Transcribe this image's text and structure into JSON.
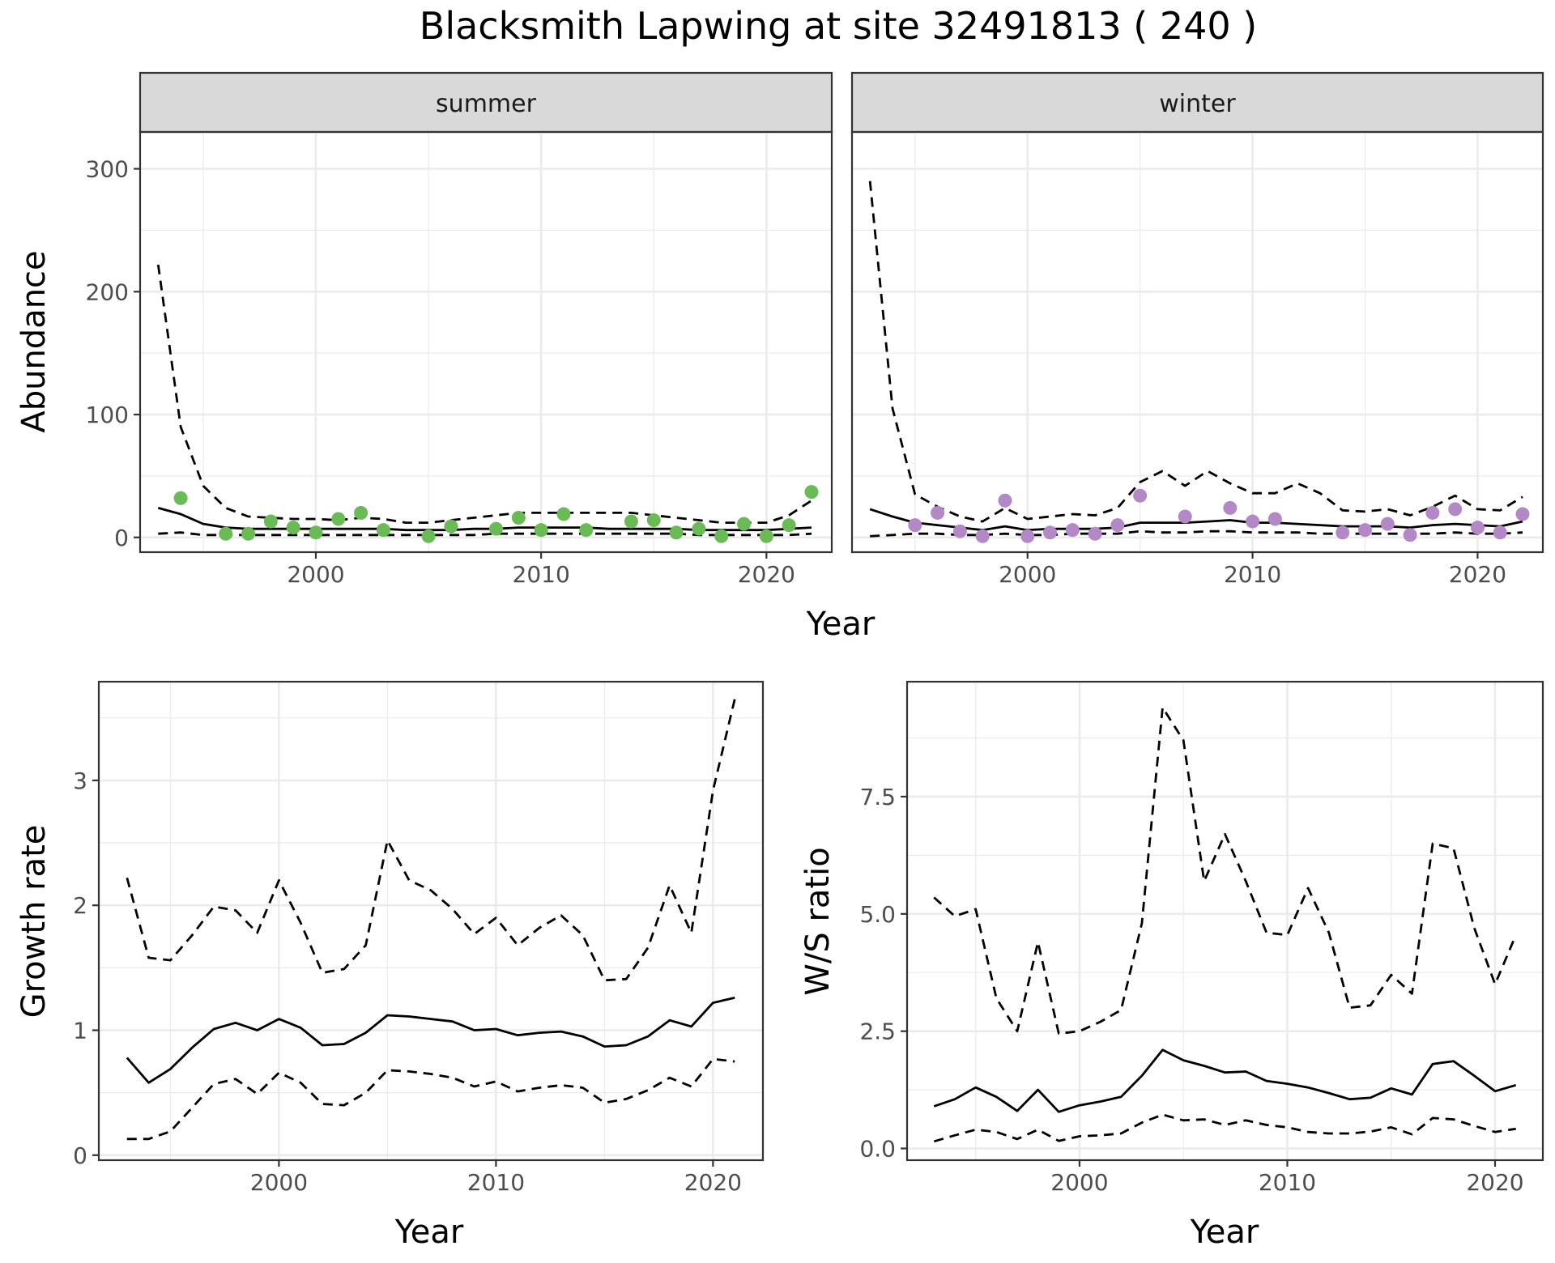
{
  "title": "Blacksmith Lapwing at site 32491813 ( 240 )",
  "colors": {
    "summer_points": "#6ABA55",
    "winter_points": "#B388C6",
    "line": "#000000",
    "strip": "#D9D9D9",
    "grid": "#EBEBEB"
  },
  "chart_data": [
    {
      "id": "abundance",
      "type": "scatter",
      "ylabel": "Abundance",
      "xlabel": "Year",
      "xlim": [
        1992.2,
        2022.9
      ],
      "ylim": [
        -12,
        330
      ],
      "xticks": [
        2000,
        2010,
        2020
      ],
      "yticks": [
        0,
        100,
        200,
        300
      ],
      "ytick_labels": [
        "0",
        "100",
        "200",
        "300"
      ],
      "facets": [
        {
          "name": "summer",
          "point_color": "#6ABA55",
          "points": {
            "x": [
              1994,
              1996,
              1997,
              1998,
              1999,
              2000,
              2001,
              2002,
              2003,
              2005,
              2006,
              2008,
              2009,
              2010,
              2011,
              2012,
              2014,
              2015,
              2016,
              2017,
              2018,
              2019,
              2020,
              2021,
              2022
            ],
            "y": [
              32,
              3,
              3,
              13,
              8,
              4,
              15,
              20,
              6,
              1,
              9,
              7,
              16,
              6,
              19,
              6,
              13,
              14,
              4,
              7,
              1,
              11,
              1,
              10,
              37
            ]
          },
          "mean": {
            "x": [
              1993,
              1994,
              1995,
              1996,
              1997,
              1998,
              1999,
              2000,
              2001,
              2002,
              2003,
              2004,
              2005,
              2006,
              2007,
              2008,
              2009,
              2010,
              2011,
              2012,
              2013,
              2014,
              2015,
              2016,
              2017,
              2018,
              2019,
              2020,
              2021,
              2022
            ],
            "y": [
              24,
              19,
              11,
              8,
              7,
              7,
              7,
              7,
              7,
              7,
              7,
              6,
              6,
              6,
              7,
              7,
              8,
              8,
              8,
              8,
              7,
              7,
              7,
              7,
              6,
              6,
              6,
              6,
              7,
              8
            ]
          },
          "upper": {
            "x": [
              1993,
              1994,
              1995,
              1996,
              1997,
              1998,
              1999,
              2000,
              2001,
              2002,
              2003,
              2004,
              2005,
              2006,
              2007,
              2008,
              2009,
              2010,
              2011,
              2012,
              2013,
              2014,
              2015,
              2016,
              2017,
              2018,
              2019,
              2020,
              2021,
              2022
            ],
            "y": [
              222,
              90,
              42,
              24,
              17,
              16,
              15,
              15,
              14,
              16,
              15,
              12,
              12,
              14,
              16,
              18,
              20,
              20,
              20,
              20,
              20,
              20,
              18,
              16,
              14,
              12,
              12,
              12,
              18,
              30
            ]
          },
          "lower": {
            "x": [
              1993,
              1994,
              1995,
              1996,
              1997,
              1998,
              1999,
              2000,
              2001,
              2002,
              2003,
              2004,
              2005,
              2006,
              2007,
              2008,
              2009,
              2010,
              2011,
              2012,
              2013,
              2014,
              2015,
              2016,
              2017,
              2018,
              2019,
              2020,
              2021,
              2022
            ],
            "y": [
              3,
              4,
              2,
              2,
              2,
              2,
              2,
              2,
              2,
              2,
              2,
              2,
              2,
              2,
              2,
              3,
              3,
              3,
              3,
              3,
              3,
              3,
              3,
              3,
              2,
              2,
              2,
              2,
              2,
              3
            ]
          }
        },
        {
          "name": "winter",
          "point_color": "#B388C6",
          "points": {
            "x": [
              1995,
              1996,
              1997,
              1998,
              1999,
              2000,
              2001,
              2002,
              2003,
              2004,
              2005,
              2007,
              2009,
              2010,
              2011,
              2014,
              2015,
              2016,
              2017,
              2018,
              2019,
              2020,
              2021,
              2022
            ],
            "y": [
              10,
              20,
              5,
              1,
              30,
              1,
              4,
              6,
              3,
              10,
              34,
              17,
              24,
              13,
              15,
              4,
              6,
              11,
              2,
              20,
              23,
              8,
              4,
              19
            ]
          },
          "mean": {
            "x": [
              1993,
              1994,
              1995,
              1996,
              1997,
              1998,
              1999,
              2000,
              2001,
              2002,
              2003,
              2004,
              2005,
              2006,
              2007,
              2008,
              2009,
              2010,
              2011,
              2012,
              2013,
              2014,
              2015,
              2016,
              2017,
              2018,
              2019,
              2020,
              2021,
              2022
            ],
            "y": [
              23,
              17,
              12,
              10,
              8,
              6,
              9,
              6,
              7,
              7,
              7,
              8,
              12,
              12,
              12,
              13,
              14,
              12,
              12,
              11,
              10,
              9,
              9,
              9,
              8,
              10,
              11,
              10,
              9,
              13
            ]
          },
          "upper": {
            "x": [
              1993,
              1994,
              1995,
              1996,
              1997,
              1998,
              1999,
              2000,
              2001,
              2002,
              2003,
              2004,
              2005,
              2006,
              2007,
              2008,
              2009,
              2010,
              2011,
              2012,
              2013,
              2014,
              2015,
              2016,
              2017,
              2018,
              2019,
              2020,
              2021,
              2022
            ],
            "y": [
              290,
              105,
              35,
              25,
              17,
              13,
              24,
              15,
              17,
              19,
              18,
              24,
              45,
              54,
              42,
              54,
              44,
              36,
              36,
              44,
              36,
              22,
              21,
              23,
              18,
              25,
              34,
              23,
              22,
              33
            ]
          },
          "lower": {
            "x": [
              1993,
              1994,
              1995,
              1996,
              1997,
              1998,
              1999,
              2000,
              2001,
              2002,
              2003,
              2004,
              2005,
              2006,
              2007,
              2008,
              2009,
              2010,
              2011,
              2012,
              2013,
              2014,
              2015,
              2016,
              2017,
              2018,
              2019,
              2020,
              2021,
              2022
            ],
            "y": [
              1,
              2,
              3,
              3,
              2,
              2,
              3,
              2,
              2,
              3,
              3,
              3,
              5,
              4,
              4,
              5,
              5,
              4,
              4,
              4,
              3,
              3,
              3,
              3,
              3,
              3,
              4,
              3,
              3,
              4
            ]
          }
        }
      ]
    },
    {
      "id": "growth",
      "type": "line",
      "ylabel": "Growth rate",
      "xlabel": "Year",
      "xlim": [
        1991.7,
        2022.3
      ],
      "ylim": [
        -0.04,
        3.79
      ],
      "xticks": [
        2000,
        2010,
        2020
      ],
      "yticks": [
        0,
        1,
        2,
        3
      ],
      "ytick_labels": [
        "0",
        "1",
        "2",
        "3"
      ],
      "mean": {
        "x": [
          1993,
          1994,
          1995,
          1996,
          1997,
          1998,
          1999,
          2000,
          2001,
          2002,
          2003,
          2004,
          2005,
          2006,
          2007,
          2008,
          2009,
          2010,
          2011,
          2012,
          2013,
          2014,
          2015,
          2016,
          2017,
          2018,
          2019,
          2020,
          2021
        ],
        "y": [
          0.78,
          0.58,
          0.69,
          0.86,
          1.01,
          1.06,
          1.0,
          1.09,
          1.02,
          0.88,
          0.89,
          0.98,
          1.12,
          1.11,
          1.09,
          1.07,
          1.0,
          1.01,
          0.96,
          0.98,
          0.99,
          0.95,
          0.87,
          0.88,
          0.95,
          1.08,
          1.03,
          1.22,
          1.26
        ]
      },
      "upper": {
        "x": [
          1993,
          1994,
          1995,
          1996,
          1997,
          1998,
          1999,
          2000,
          2001,
          2002,
          2003,
          2004,
          2005,
          2006,
          2007,
          2008,
          2009,
          2010,
          2011,
          2012,
          2013,
          2014,
          2015,
          2016,
          2017,
          2018,
          2019,
          2020,
          2021
        ],
        "y": [
          2.22,
          1.58,
          1.56,
          1.76,
          1.99,
          1.96,
          1.78,
          2.2,
          1.86,
          1.46,
          1.49,
          1.68,
          2.52,
          2.2,
          2.12,
          1.97,
          1.77,
          1.9,
          1.68,
          1.82,
          1.92,
          1.76,
          1.4,
          1.41,
          1.66,
          2.16,
          1.78,
          2.92,
          3.65
        ]
      },
      "lower": {
        "x": [
          1993,
          1994,
          1995,
          1996,
          1997,
          1998,
          1999,
          2000,
          2001,
          2002,
          2003,
          2004,
          2005,
          2006,
          2007,
          2008,
          2009,
          2010,
          2011,
          2012,
          2013,
          2014,
          2015,
          2016,
          2017,
          2018,
          2019,
          2020,
          2021
        ],
        "y": [
          0.13,
          0.13,
          0.19,
          0.38,
          0.57,
          0.61,
          0.49,
          0.66,
          0.58,
          0.41,
          0.4,
          0.5,
          0.68,
          0.67,
          0.65,
          0.62,
          0.55,
          0.59,
          0.51,
          0.54,
          0.56,
          0.54,
          0.42,
          0.45,
          0.52,
          0.62,
          0.55,
          0.77,
          0.75
        ]
      }
    },
    {
      "id": "ws_ratio",
      "type": "line",
      "ylabel": "W/S ratio",
      "xlabel": "Year",
      "xlim": [
        1991.7,
        2022.3
      ],
      "ylim": [
        -0.25,
        9.95
      ],
      "xticks": [
        2000,
        2010,
        2020
      ],
      "yticks": [
        0,
        2.5,
        5,
        7.5
      ],
      "ytick_labels": [
        "0.0",
        "2.5",
        "5.0",
        "7.5"
      ],
      "mean": {
        "x": [
          1993,
          1994,
          1995,
          1996,
          1997,
          1998,
          1999,
          2000,
          2001,
          2002,
          2003,
          2004,
          2005,
          2006,
          2007,
          2008,
          2009,
          2010,
          2011,
          2012,
          2013,
          2014,
          2015,
          2016,
          2017,
          2018,
          2019,
          2020,
          2021
        ],
        "y": [
          0.9,
          1.05,
          1.3,
          1.1,
          0.8,
          1.25,
          0.78,
          0.92,
          1.0,
          1.1,
          1.55,
          2.1,
          1.88,
          1.76,
          1.62,
          1.64,
          1.44,
          1.38,
          1.3,
          1.18,
          1.05,
          1.08,
          1.28,
          1.15,
          1.8,
          1.86,
          1.55,
          1.22,
          1.35
        ]
      },
      "upper": {
        "x": [
          1993,
          1994,
          1995,
          1996,
          1997,
          1998,
          1999,
          2000,
          2001,
          2002,
          2003,
          2004,
          2005,
          2006,
          2007,
          2008,
          2009,
          2010,
          2011,
          2012,
          2013,
          2014,
          2015,
          2016,
          2017,
          2018,
          2019,
          2020,
          2021
        ],
        "y": [
          5.35,
          4.95,
          5.1,
          3.2,
          2.5,
          4.4,
          2.45,
          2.5,
          2.7,
          2.95,
          4.8,
          9.4,
          8.7,
          5.7,
          6.7,
          5.7,
          4.6,
          4.55,
          5.55,
          4.6,
          3.0,
          3.05,
          3.7,
          3.3,
          6.5,
          6.4,
          4.7,
          3.5,
          4.55
        ]
      },
      "lower": {
        "x": [
          1993,
          1994,
          1995,
          1996,
          1997,
          1998,
          1999,
          2000,
          2001,
          2002,
          2003,
          2004,
          2005,
          2006,
          2007,
          2008,
          2009,
          2010,
          2011,
          2012,
          2013,
          2014,
          2015,
          2016,
          2017,
          2018,
          2019,
          2020,
          2021
        ],
        "y": [
          0.15,
          0.28,
          0.4,
          0.35,
          0.2,
          0.4,
          0.16,
          0.26,
          0.28,
          0.32,
          0.55,
          0.72,
          0.6,
          0.62,
          0.5,
          0.6,
          0.5,
          0.45,
          0.35,
          0.32,
          0.32,
          0.36,
          0.45,
          0.3,
          0.65,
          0.62,
          0.48,
          0.35,
          0.42
        ]
      }
    }
  ]
}
